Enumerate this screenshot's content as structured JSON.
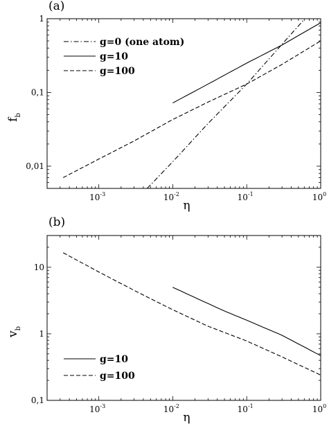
{
  "chart_data": [
    {
      "panel_label": "(a)",
      "type": "line",
      "xlabel": "η",
      "ylabel": "f",
      "ylabel_sub": "b",
      "xscale": "log",
      "yscale": "log",
      "xlim": [
        0.0002,
        1
      ],
      "ylim": [
        0.005,
        1
      ],
      "xticks": [
        {
          "base": "10",
          "exp": "-3",
          "value": 0.001
        },
        {
          "base": "10",
          "exp": "-2",
          "value": 0.01
        },
        {
          "base": "10",
          "exp": "-1",
          "value": 0.1
        },
        {
          "base": "10",
          "exp": "0",
          "value": 1
        }
      ],
      "yticks": [
        {
          "label": "0,01",
          "value": 0.01
        },
        {
          "label": "0,1",
          "value": 0.1
        },
        {
          "label": "1",
          "value": 1
        }
      ],
      "legend_position": "top-left",
      "series": [
        {
          "name": "g=0 (one atom)",
          "style": "dashdot",
          "x": [
            0.0045,
            0.01,
            0.03,
            0.1,
            0.3,
            0.6
          ],
          "y": [
            0.005,
            0.0115,
            0.038,
            0.13,
            0.45,
            0.98
          ]
        },
        {
          "name": "g=10",
          "style": "solid",
          "x": [
            0.01,
            0.03,
            0.1,
            0.3,
            1
          ],
          "y": [
            0.072,
            0.13,
            0.25,
            0.44,
            0.88
          ]
        },
        {
          "name": "g=100",
          "style": "dashed",
          "x": [
            0.00033,
            0.001,
            0.003,
            0.01,
            0.03,
            0.1,
            0.3,
            1
          ],
          "y": [
            0.007,
            0.0125,
            0.022,
            0.043,
            0.074,
            0.13,
            0.24,
            0.5
          ]
        }
      ]
    },
    {
      "panel_label": "(b)",
      "type": "line",
      "xlabel": "η",
      "ylabel": "v",
      "ylabel_sub": "b",
      "xscale": "log",
      "yscale": "log",
      "xlim": [
        0.0002,
        1
      ],
      "ylim": [
        0.1,
        30
      ],
      "xticks": [
        {
          "base": "10",
          "exp": "-3",
          "value": 0.001
        },
        {
          "base": "10",
          "exp": "-2",
          "value": 0.01
        },
        {
          "base": "10",
          "exp": "-1",
          "value": 0.1
        },
        {
          "base": "10",
          "exp": "0",
          "value": 1
        }
      ],
      "yticks": [
        {
          "label": "0,1",
          "value": 0.1
        },
        {
          "label": "1",
          "value": 1
        },
        {
          "label": "10",
          "value": 10
        }
      ],
      "legend_position": "bottom-left",
      "series": [
        {
          "name": "g=10",
          "style": "solid",
          "x": [
            0.01,
            0.02,
            0.05,
            0.1,
            0.3,
            1
          ],
          "y": [
            5.0,
            3.5,
            2.2,
            1.6,
            0.95,
            0.47
          ]
        },
        {
          "name": "g=100",
          "style": "dashed",
          "x": [
            0.00033,
            0.001,
            0.003,
            0.01,
            0.03,
            0.1,
            0.3,
            1
          ],
          "y": [
            16.5,
            8.5,
            4.5,
            2.3,
            1.3,
            0.78,
            0.45,
            0.24
          ]
        }
      ]
    }
  ]
}
